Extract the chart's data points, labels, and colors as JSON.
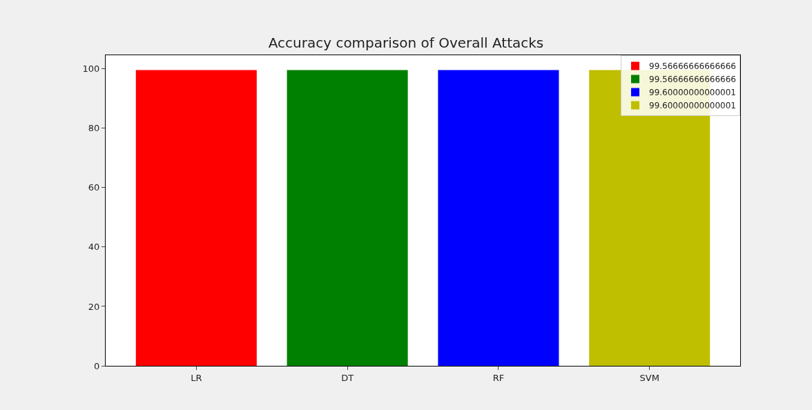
{
  "chart_data": {
    "type": "bar",
    "title": "Accuracy comparison of Overall Attacks",
    "categories": [
      "LR",
      "DT",
      "RF",
      "SVM"
    ],
    "series": [
      {
        "name": "99.56666666666666",
        "color": "#ff0000",
        "values": [
          99.6,
          null,
          null,
          null
        ]
      },
      {
        "name": "99.56666666666666",
        "color": "#008000",
        "values": [
          null,
          99.6,
          null,
          null
        ]
      },
      {
        "name": "99.60000000000001",
        "color": "#0000ff",
        "values": [
          null,
          null,
          99.6,
          null
        ]
      },
      {
        "name": "99.60000000000001",
        "color": "#bfbf00",
        "values": [
          null,
          null,
          null,
          99.6
        ]
      }
    ],
    "ylim": [
      0,
      104.6
    ],
    "yticks": [
      0,
      20,
      40,
      60,
      80,
      100
    ],
    "legend": "top right"
  }
}
